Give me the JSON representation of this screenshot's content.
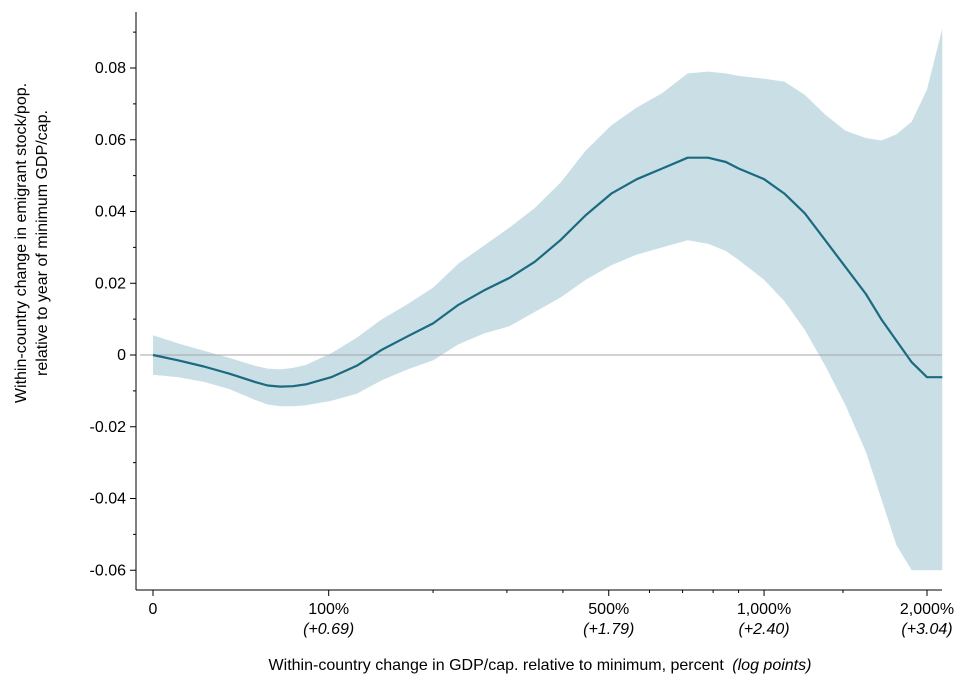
{
  "chart_data": {
    "type": "line",
    "title": "",
    "xlabel_main": "Within-country change in GDP/cap. relative to minimum, percent",
    "xlabel_italic": "(log points)",
    "ylabel_line1": "Within-country change in emigrant stock/pop.",
    "ylabel_line2": "relative to year of minimum GDP/cap.",
    "xlim": [
      0,
      3.1
    ],
    "ylim": [
      -0.064,
      0.095
    ],
    "grid": false,
    "legend": "none",
    "x_scale": "log(1+change)",
    "y_ticks": [
      {
        "value": 0.08,
        "label": "0.08"
      },
      {
        "value": 0.06,
        "label": "0.06"
      },
      {
        "value": 0.04,
        "label": "0.04"
      },
      {
        "value": 0.02,
        "label": "0.02"
      },
      {
        "value": 0,
        "label": "0"
      },
      {
        "value": -0.02,
        "label": "-0.02"
      },
      {
        "value": -0.04,
        "label": "-0.04"
      },
      {
        "value": -0.06,
        "label": "-0.06"
      }
    ],
    "y_minor_ticks": [
      0.09,
      0.07,
      0.05,
      0.03,
      0.01,
      -0.01,
      -0.03,
      -0.05
    ],
    "x_ticks": [
      {
        "value": 0,
        "label": "0",
        "sub": ""
      },
      {
        "value": 0.69,
        "label": "100%",
        "sub": "(+0.69)"
      },
      {
        "value": 1.79,
        "label": "500%",
        "sub": "(+1.79)"
      },
      {
        "value": 2.4,
        "label": "1,000%",
        "sub": "(+2.40)"
      },
      {
        "value": 3.04,
        "label": "2,000%",
        "sub": "(+3.04)"
      }
    ],
    "x_minor_ticks": [
      1.1,
      1.39,
      1.61,
      1.95,
      2.08,
      2.2,
      2.3,
      2.71
    ],
    "reference_line_y": 0,
    "colors": {
      "line": "#1b6a80",
      "band": "#c9dfe5",
      "reference": "#a6a6a6",
      "axis": "#000000"
    },
    "series": [
      {
        "values": [
          {
            "x": 0.0,
            "y": 0.0,
            "lo": -0.0055,
            "hi": 0.0055
          },
          {
            "x": 0.1,
            "y": -0.0015,
            "lo": -0.0062,
            "hi": 0.0032
          },
          {
            "x": 0.2,
            "y": -0.0032,
            "lo": -0.0075,
            "hi": 0.0012
          },
          {
            "x": 0.3,
            "y": -0.0052,
            "lo": -0.0095,
            "hi": -0.0008
          },
          {
            "x": 0.4,
            "y": -0.0075,
            "lo": -0.0125,
            "hi": -0.003
          },
          {
            "x": 0.45,
            "y": -0.0085,
            "lo": -0.0138,
            "hi": -0.0038
          },
          {
            "x": 0.5,
            "y": -0.0088,
            "lo": -0.0143,
            "hi": -0.004
          },
          {
            "x": 0.55,
            "y": -0.0087,
            "lo": -0.0143,
            "hi": -0.0036
          },
          {
            "x": 0.6,
            "y": -0.0082,
            "lo": -0.014,
            "hi": -0.0028
          },
          {
            "x": 0.7,
            "y": -0.0062,
            "lo": -0.0128,
            "hi": 0.0005
          },
          {
            "x": 0.8,
            "y": -0.003,
            "lo": -0.0108,
            "hi": 0.0048
          },
          {
            "x": 0.9,
            "y": 0.0015,
            "lo": -0.007,
            "hi": 0.01
          },
          {
            "x": 1.0,
            "y": 0.0052,
            "lo": -0.004,
            "hi": 0.0142
          },
          {
            "x": 1.1,
            "y": 0.0088,
            "lo": -0.0015,
            "hi": 0.0188
          },
          {
            "x": 1.2,
            "y": 0.014,
            "lo": 0.003,
            "hi": 0.0255
          },
          {
            "x": 1.3,
            "y": 0.018,
            "lo": 0.006,
            "hi": 0.0305
          },
          {
            "x": 1.4,
            "y": 0.0215,
            "lo": 0.008,
            "hi": 0.0355
          },
          {
            "x": 1.5,
            "y": 0.026,
            "lo": 0.012,
            "hi": 0.041
          },
          {
            "x": 1.6,
            "y": 0.032,
            "lo": 0.016,
            "hi": 0.048
          },
          {
            "x": 1.7,
            "y": 0.039,
            "lo": 0.021,
            "hi": 0.057
          },
          {
            "x": 1.8,
            "y": 0.045,
            "lo": 0.025,
            "hi": 0.064
          },
          {
            "x": 1.9,
            "y": 0.049,
            "lo": 0.028,
            "hi": 0.069
          },
          {
            "x": 2.0,
            "y": 0.052,
            "lo": 0.03,
            "hi": 0.073
          },
          {
            "x": 2.1,
            "y": 0.055,
            "lo": 0.032,
            "hi": 0.0785
          },
          {
            "x": 2.18,
            "y": 0.055,
            "lo": 0.031,
            "hi": 0.079
          },
          {
            "x": 2.25,
            "y": 0.0538,
            "lo": 0.029,
            "hi": 0.0785
          },
          {
            "x": 2.3,
            "y": 0.052,
            "lo": 0.0265,
            "hi": 0.0778
          },
          {
            "x": 2.4,
            "y": 0.049,
            "lo": 0.021,
            "hi": 0.077
          },
          {
            "x": 2.48,
            "y": 0.045,
            "lo": 0.015,
            "hi": 0.0762
          },
          {
            "x": 2.56,
            "y": 0.0395,
            "lo": 0.007,
            "hi": 0.0725
          },
          {
            "x": 2.64,
            "y": 0.032,
            "lo": -0.003,
            "hi": 0.067
          },
          {
            "x": 2.72,
            "y": 0.0245,
            "lo": -0.014,
            "hi": 0.0625
          },
          {
            "x": 2.8,
            "y": 0.017,
            "lo": -0.027,
            "hi": 0.0605
          },
          {
            "x": 2.86,
            "y": 0.01,
            "lo": -0.04,
            "hi": 0.0598
          },
          {
            "x": 2.92,
            "y": 0.004,
            "lo": -0.053,
            "hi": 0.0615
          },
          {
            "x": 2.98,
            "y": -0.002,
            "lo": -0.06,
            "hi": 0.065
          },
          {
            "x": 3.04,
            "y": -0.0062,
            "lo": -0.06,
            "hi": 0.074
          },
          {
            "x": 3.1,
            "y": -0.0062,
            "lo": -0.06,
            "hi": 0.091
          }
        ]
      }
    ]
  }
}
